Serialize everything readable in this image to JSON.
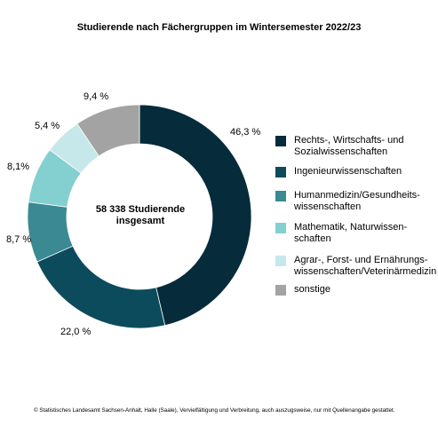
{
  "chart_data": {
    "type": "pie",
    "title": "Studierende nach Fächergruppen im Wintersemester 2022/23",
    "center_label": [
      "58 338 Studierende",
      "insgesamt"
    ],
    "categories": [
      "Rechts-, Wirtschafts- und Sozialwissenschaften",
      "Ingenieurwissenschaften",
      "Humanmedizin/Gesundheitswissenschaften",
      "Mathematik, Naturwissenschaften",
      "Agrar-, Forst- und Ernährungswissenschaften/Veterinärmedizin",
      "sonstige"
    ],
    "values": [
      46.3,
      22.0,
      8.7,
      8.1,
      5.4,
      9.4
    ],
    "value_labels": [
      "46,3 %",
      "22,0 %",
      "8,7 %",
      "8,1%",
      "5,4 %",
      "9,4 %"
    ],
    "colors": [
      "#062b3a",
      "#0c4b5c",
      "#3a8993",
      "#84cfd0",
      "#c6e8ea",
      "#a3a3a3"
    ],
    "legend_lines": [
      [
        "Rechts-, Wirtschafts- und",
        "Sozialwissenschaften"
      ],
      [
        "Ingenieurwissenschaften"
      ],
      [
        "Humanmedizin/Gesundheits-",
        "wissenschaften"
      ],
      [
        "Mathematik, Naturwissen-",
        "schaften"
      ],
      [
        "Agrar-, Forst- und Ernährungs-",
        "wissenschaften/Veterinärmedizin"
      ],
      [
        "sonstige"
      ]
    ],
    "legend_position": "right",
    "donut": true
  },
  "footnote": "© Statistisches Landesamt Sachsen-Anhalt, Halle (Saale), Vervielfältigung und Verbreitung, auch auszugsweise, nur mit Quellenangabe gestattet."
}
